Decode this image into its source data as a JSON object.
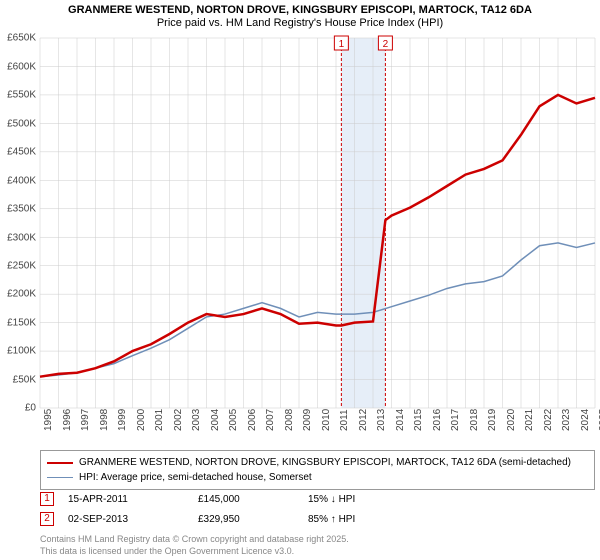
{
  "title_line1": "GRANMERE WESTEND, NORTON DROVE, KINGSBURY EPISCOPI, MARTOCK, TA12 6DA",
  "title_line2": "Price paid vs. HM Land Registry's House Price Index (HPI)",
  "chart": {
    "type": "line",
    "xlim": [
      1995,
      2025
    ],
    "ylim": [
      0,
      650
    ],
    "y_unit_prefix": "£",
    "y_unit_suffix": "K",
    "yticks": [
      0,
      50,
      100,
      150,
      200,
      250,
      300,
      350,
      400,
      450,
      500,
      550,
      600,
      650
    ],
    "xticks": [
      1995,
      1996,
      1997,
      1998,
      1999,
      2000,
      2001,
      2002,
      2003,
      2004,
      2005,
      2006,
      2007,
      2008,
      2009,
      2010,
      2011,
      2012,
      2013,
      2014,
      2015,
      2016,
      2017,
      2018,
      2019,
      2020,
      2021,
      2022,
      2023,
      2024,
      2025
    ],
    "background_color": "#ffffff",
    "grid_color": "#cccccc",
    "series": [
      {
        "name": "price_paid",
        "label": "GRANMERE WESTEND, NORTON DROVE, KINGSBURY EPISCOPI, MARTOCK, TA12 6DA (semi-detached)",
        "color": "#cc0000",
        "line_width": 2.5,
        "data": [
          [
            1995,
            55
          ],
          [
            1996,
            60
          ],
          [
            1997,
            62
          ],
          [
            1998,
            70
          ],
          [
            1999,
            82
          ],
          [
            2000,
            100
          ],
          [
            2001,
            112
          ],
          [
            2002,
            130
          ],
          [
            2003,
            150
          ],
          [
            2004,
            165
          ],
          [
            2005,
            160
          ],
          [
            2006,
            165
          ],
          [
            2007,
            175
          ],
          [
            2008,
            165
          ],
          [
            2009,
            148
          ],
          [
            2010,
            150
          ],
          [
            2011,
            145
          ],
          [
            2011.29,
            145
          ],
          [
            2012,
            150
          ],
          [
            2013,
            152
          ],
          [
            2013.67,
            330
          ],
          [
            2014,
            338
          ],
          [
            2015,
            352
          ],
          [
            2016,
            370
          ],
          [
            2017,
            390
          ],
          [
            2018,
            410
          ],
          [
            2019,
            420
          ],
          [
            2020,
            435
          ],
          [
            2021,
            480
          ],
          [
            2022,
            530
          ],
          [
            2023,
            550
          ],
          [
            2024,
            535
          ],
          [
            2025,
            545
          ]
        ]
      },
      {
        "name": "hpi",
        "label": "HPI: Average price, semi-detached house, Somerset",
        "color": "#6f8fb8",
        "line_width": 1.5,
        "data": [
          [
            1995,
            55
          ],
          [
            1996,
            58
          ],
          [
            1997,
            62
          ],
          [
            1998,
            70
          ],
          [
            1999,
            78
          ],
          [
            2000,
            92
          ],
          [
            2001,
            105
          ],
          [
            2002,
            120
          ],
          [
            2003,
            140
          ],
          [
            2004,
            160
          ],
          [
            2005,
            165
          ],
          [
            2006,
            175
          ],
          [
            2007,
            185
          ],
          [
            2008,
            175
          ],
          [
            2009,
            160
          ],
          [
            2010,
            168
          ],
          [
            2011,
            165
          ],
          [
            2012,
            165
          ],
          [
            2013,
            168
          ],
          [
            2014,
            178
          ],
          [
            2015,
            188
          ],
          [
            2016,
            198
          ],
          [
            2017,
            210
          ],
          [
            2018,
            218
          ],
          [
            2019,
            222
          ],
          [
            2020,
            232
          ],
          [
            2021,
            260
          ],
          [
            2022,
            285
          ],
          [
            2023,
            290
          ],
          [
            2024,
            282
          ],
          [
            2025,
            290
          ]
        ]
      }
    ],
    "highlight_band": {
      "x_start": 2011.29,
      "x_end": 2013.67,
      "fill": "#e6eef8"
    },
    "markers": [
      {
        "id": "1",
        "x": 2011.29,
        "color": "#cc0000"
      },
      {
        "id": "2",
        "x": 2013.67,
        "color": "#cc0000"
      }
    ]
  },
  "sales": [
    {
      "id": "1",
      "date": "15-APR-2011",
      "price": "£145,000",
      "delta": "15% ↓ HPI"
    },
    {
      "id": "2",
      "date": "02-SEP-2013",
      "price": "£329,950",
      "delta": "85% ↑ HPI"
    }
  ],
  "footer_line1": "Contains HM Land Registry data © Crown copyright and database right 2025.",
  "footer_line2": "This data is licensed under the Open Government Licence v3.0."
}
